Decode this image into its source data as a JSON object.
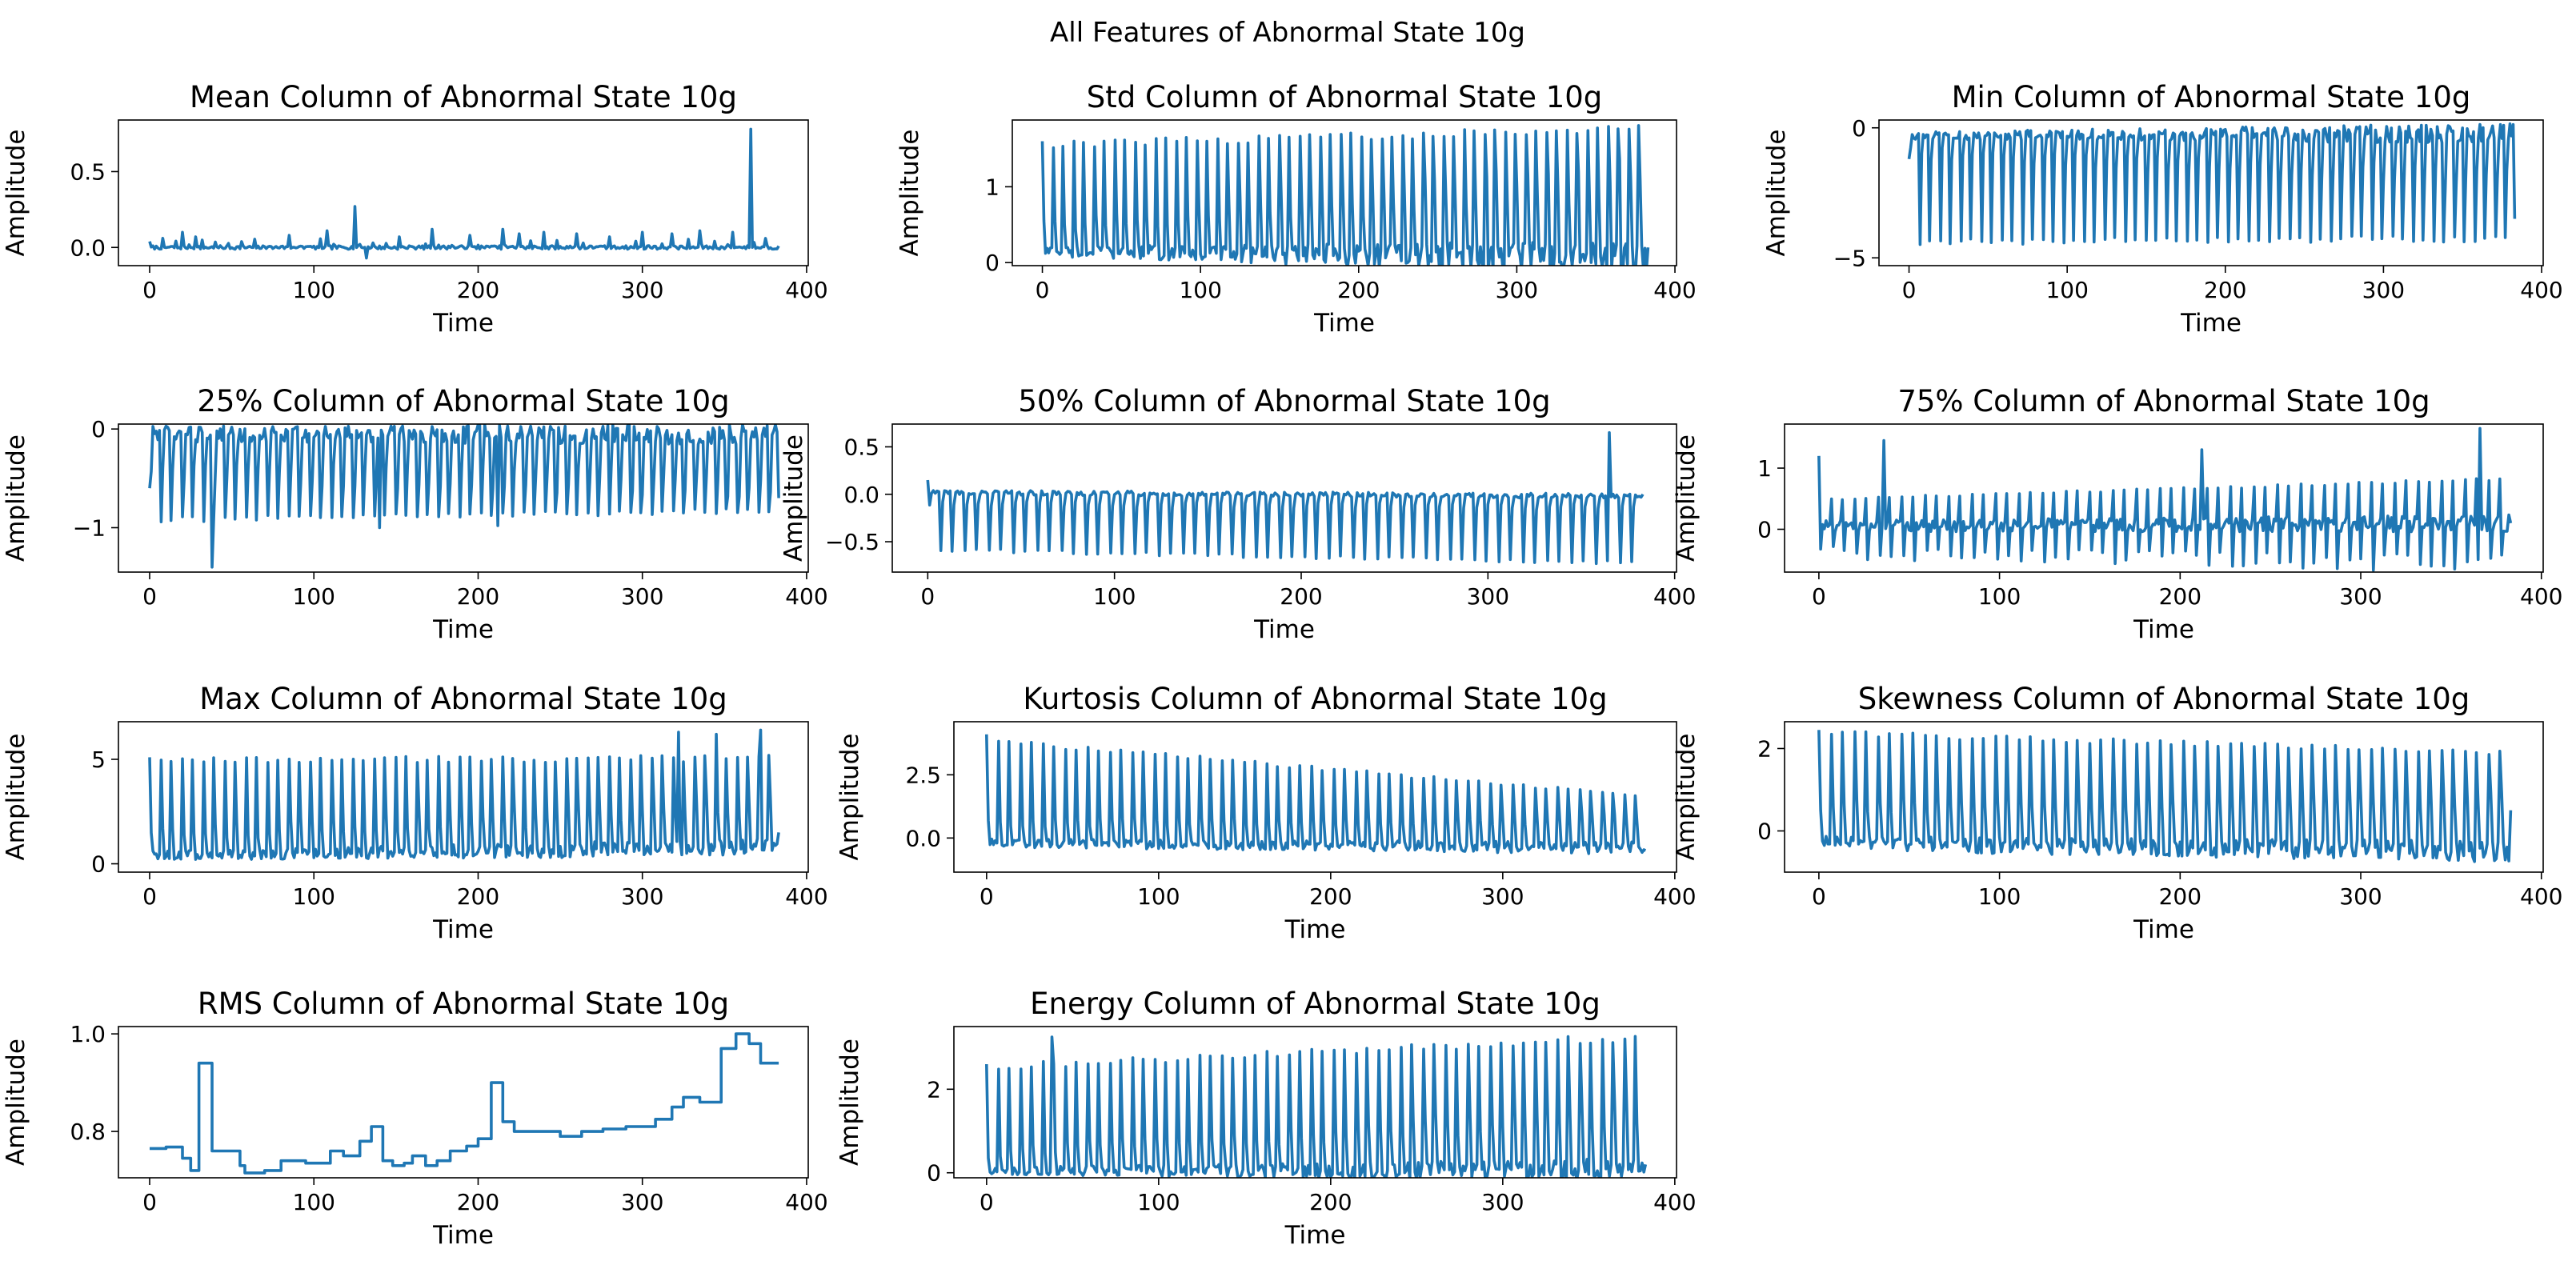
{
  "figure": {
    "suptitle": "All Features of Abnormal State 10g",
    "line_color": "#1f77b4"
  },
  "chart_data": [
    {
      "type": "line",
      "title": "Mean Column of Abnormal State 10g",
      "xlabel": "Time",
      "ylabel": "Amplitude",
      "xlim": [
        -19,
        401
      ],
      "ylim": [
        -0.12,
        0.84
      ],
      "xticks": [
        0,
        100,
        200,
        300,
        400
      ],
      "yticks": [
        0.0,
        0.5
      ],
      "ytick_labels": [
        "0.0",
        "0.5"
      ],
      "series": [
        {
          "pattern": "flat-spikes",
          "n_points": 384,
          "baseline": 0.0,
          "noise": 0.012,
          "spikes": [
            [
              20,
              0.1
            ],
            [
              28,
              0.07
            ],
            [
              85,
              0.08
            ],
            [
              108,
              0.11
            ],
            [
              125,
              0.27
            ],
            [
              132,
              -0.07
            ],
            [
              152,
              0.07
            ],
            [
              172,
              0.12
            ],
            [
              195,
              0.08
            ],
            [
              215,
              0.12
            ],
            [
              225,
              0.09
            ],
            [
              240,
              0.1
            ],
            [
              260,
              0.09
            ],
            [
              280,
              0.07
            ],
            [
              300,
              0.1
            ],
            [
              318,
              0.09
            ],
            [
              335,
              0.11
            ],
            [
              355,
              0.1
            ],
            [
              366,
              0.78
            ],
            [
              375,
              0.06
            ]
          ],
          "periodic_spike": {
            "period": 8,
            "height": 0.05
          }
        }
      ]
    },
    {
      "type": "line",
      "title": "Std Column of Abnormal State 10g",
      "xlabel": "Time",
      "ylabel": "Amplitude",
      "xlim": [
        -19,
        401
      ],
      "ylim": [
        -0.04,
        1.88
      ],
      "xticks": [
        0,
        100,
        200,
        300,
        400
      ],
      "yticks": [
        0,
        1
      ],
      "ytick_labels": [
        "0",
        "1"
      ],
      "series": [
        {
          "pattern": "pulse",
          "n_points": 384,
          "period": 6.5,
          "base": [
            0.15,
            0.05
          ],
          "peak": [
            1.6,
            1.82
          ],
          "sub_peak": [
            0.5,
            1.2
          ],
          "first_value": 1.6,
          "last_value": 0.2
        }
      ]
    },
    {
      "type": "line",
      "title": "Min Column of Abnormal State 10g",
      "xlabel": "Time",
      "ylabel": "Amplitude",
      "xlim": [
        -19,
        401
      ],
      "ylim": [
        -5.3,
        0.3
      ],
      "xticks": [
        0,
        100,
        200,
        300,
        400
      ],
      "yticks": [
        0,
        -5
      ],
      "ytick_labels": [
        "0",
        "−5"
      ],
      "series": [
        {
          "pattern": "pulse",
          "n_points": 384,
          "period": 6.5,
          "base": [
            -0.3,
            -0.2
          ],
          "peak": [
            -4.5,
            -4.4
          ],
          "sub_peak": [
            -1.0,
            -2.2
          ],
          "first_value": -1.2,
          "last_value": -3.5
        }
      ]
    },
    {
      "type": "line",
      "title": "25% Column of Abnormal State 10g",
      "xlabel": "Time",
      "ylabel": "Amplitude",
      "xlim": [
        -19,
        401
      ],
      "ylim": [
        -1.45,
        0.05
      ],
      "xticks": [
        0,
        100,
        200,
        300,
        400
      ],
      "yticks": [
        0,
        -1
      ],
      "ytick_labels": [
        "0",
        "−1"
      ],
      "series": [
        {
          "pattern": "pulse",
          "n_points": 384,
          "period": 6.5,
          "base": [
            -0.05,
            -0.05
          ],
          "peak": [
            -0.95,
            -0.85
          ],
          "sub_peak": [
            -0.45,
            -0.6
          ],
          "first_value": -0.6,
          "last_value": -0.7,
          "spikes": [
            [
              38,
              -1.4
            ],
            [
              140,
              -1.0
            ],
            [
              212,
              -0.98
            ]
          ]
        }
      ]
    },
    {
      "type": "line",
      "title": "50% Column of Abnormal State 10g",
      "xlabel": "Time",
      "ylabel": "Amplitude",
      "xlim": [
        -19,
        401
      ],
      "ylim": [
        -0.82,
        0.74
      ],
      "xticks": [
        0,
        100,
        200,
        300,
        400
      ],
      "yticks": [
        0.5,
        0.0,
        -0.5
      ],
      "ytick_labels": [
        "0.5",
        "0.0",
        "−0.5"
      ],
      "series": [
        {
          "pattern": "pulse",
          "n_points": 384,
          "period": 6.5,
          "base": [
            0.02,
            -0.02
          ],
          "peak": [
            -0.6,
            -0.75
          ],
          "sub_peak": [
            -0.1,
            -0.15
          ],
          "first_value": 0.15,
          "last_value": 0.0,
          "spikes": [
            [
              365,
              0.65
            ]
          ]
        }
      ]
    },
    {
      "type": "line",
      "title": "75% Column of Abnormal State 10g",
      "xlabel": "Time",
      "ylabel": "Amplitude",
      "xlim": [
        -19,
        401
      ],
      "ylim": [
        -0.7,
        1.72
      ],
      "xticks": [
        0,
        100,
        200,
        300,
        400
      ],
      "yticks": [
        0,
        1
      ],
      "ytick_labels": [
        "0",
        "1"
      ],
      "series": [
        {
          "pattern": "pulse",
          "n_points": 384,
          "period": 6.5,
          "base": [
            0.05,
            0.1
          ],
          "peak": [
            0.5,
            0.85
          ],
          "sub_peak": [
            -0.4,
            -0.6
          ],
          "first_value": 1.2,
          "last_value": 0.1,
          "spikes": [
            [
              36,
              1.45
            ],
            [
              212,
              1.3
            ],
            [
              366,
              1.65
            ]
          ]
        }
      ]
    },
    {
      "type": "line",
      "title": "Max Column of Abnormal State 10g",
      "xlabel": "Time",
      "ylabel": "Amplitude",
      "xlim": [
        -19,
        401
      ],
      "ylim": [
        -0.4,
        6.8
      ],
      "xticks": [
        0,
        100,
        200,
        300,
        400
      ],
      "yticks": [
        0,
        5
      ],
      "ytick_labels": [
        "0",
        "5"
      ],
      "series": [
        {
          "pattern": "pulse",
          "n_points": 384,
          "period": 6.5,
          "base": [
            0.4,
            0.8
          ],
          "peak": [
            5.1,
            5.2
          ],
          "sub_peak": [
            1.5,
            3.0
          ],
          "first_value": 5.1,
          "last_value": 1.5,
          "spikes": [
            [
              322,
              6.3
            ],
            [
              345,
              6.2
            ],
            [
              372,
              6.4
            ]
          ]
        }
      ]
    },
    {
      "type": "line",
      "title": "Kurtosis Column of Abnormal State 10g",
      "xlabel": "Time",
      "ylabel": "Amplitude",
      "xlim": [
        -19,
        401
      ],
      "ylim": [
        -1.35,
        4.6
      ],
      "xticks": [
        0,
        100,
        200,
        300,
        400
      ],
      "yticks": [
        0.0,
        2.5
      ],
      "ytick_labels": [
        "0.0",
        "2.5"
      ],
      "series": [
        {
          "pattern": "pulse",
          "n_points": 384,
          "period": 6.5,
          "base": [
            -0.2,
            -0.4
          ],
          "peak": [
            4.0,
            1.7
          ],
          "sub_peak": [
            0.6,
            0.8
          ],
          "first_value": 4.1,
          "last_value": -0.5
        }
      ]
    },
    {
      "type": "line",
      "title": "Skewness Column of Abnormal State 10g",
      "xlabel": "Time",
      "ylabel": "Amplitude",
      "xlim": [
        -19,
        401
      ],
      "ylim": [
        -1.0,
        2.65
      ],
      "xticks": [
        0,
        100,
        200,
        300,
        400
      ],
      "yticks": [
        0,
        2
      ],
      "ytick_labels": [
        "0",
        "2"
      ],
      "series": [
        {
          "pattern": "pulse",
          "n_points": 384,
          "period": 6.5,
          "base": [
            -0.3,
            -0.5
          ],
          "peak": [
            2.45,
            1.95
          ],
          "sub_peak": [
            0.6,
            0.8
          ],
          "first_value": 2.45,
          "last_value": 0.5
        }
      ]
    },
    {
      "type": "line",
      "title": "RMS Column of Abnormal State 10g",
      "xlabel": "Time",
      "ylabel": "Amplitude",
      "xlim": [
        -19,
        401
      ],
      "ylim": [
        0.705,
        1.015
      ],
      "xticks": [
        0,
        100,
        200,
        300,
        400
      ],
      "yticks": [
        0.8,
        1.0
      ],
      "ytick_labels": [
        "0.8",
        "1.0"
      ],
      "series": [
        {
          "pattern": "step",
          "steps": [
            [
              0,
              0.765
            ],
            [
              10,
              0.768
            ],
            [
              20,
              0.745
            ],
            [
              25,
              0.72
            ],
            [
              30,
              0.94
            ],
            [
              38,
              0.76
            ],
            [
              55,
              0.73
            ],
            [
              58,
              0.715
            ],
            [
              70,
              0.72
            ],
            [
              80,
              0.74
            ],
            [
              95,
              0.735
            ],
            [
              110,
              0.76
            ],
            [
              118,
              0.75
            ],
            [
              128,
              0.78
            ],
            [
              135,
              0.81
            ],
            [
              142,
              0.74
            ],
            [
              148,
              0.73
            ],
            [
              155,
              0.735
            ],
            [
              160,
              0.75
            ],
            [
              168,
              0.73
            ],
            [
              175,
              0.74
            ],
            [
              183,
              0.76
            ],
            [
              193,
              0.77
            ],
            [
              200,
              0.785
            ],
            [
              208,
              0.9
            ],
            [
              215,
              0.82
            ],
            [
              222,
              0.8
            ],
            [
              250,
              0.79
            ],
            [
              263,
              0.8
            ],
            [
              276,
              0.805
            ],
            [
              290,
              0.81
            ],
            [
              300,
              0.81
            ],
            [
              308,
              0.825
            ],
            [
              318,
              0.85
            ],
            [
              325,
              0.87
            ],
            [
              335,
              0.86
            ],
            [
              348,
              0.97
            ],
            [
              357,
              1.0
            ],
            [
              365,
              0.98
            ],
            [
              372,
              0.94
            ],
            [
              383,
              0.94
            ]
          ]
        }
      ]
    },
    {
      "type": "line",
      "title": "Energy Column of Abnormal State 10g",
      "xlabel": "Time",
      "ylabel": "Amplitude",
      "xlim": [
        -19,
        401
      ],
      "ylim": [
        -0.12,
        3.5
      ],
      "xticks": [
        0,
        100,
        200,
        300,
        400
      ],
      "yticks": [
        0,
        2
      ],
      "ytick_labels": [
        "0",
        "2"
      ],
      "series": [
        {
          "pattern": "pulse",
          "n_points": 384,
          "period": 6.5,
          "base": [
            0.05,
            0.05
          ],
          "peak": [
            2.6,
            3.35
          ],
          "sub_peak": [
            0.5,
            1.5
          ],
          "first_value": 2.6,
          "last_value": 0.2,
          "spikes": [
            [
              38,
              3.25
            ]
          ]
        }
      ]
    }
  ]
}
